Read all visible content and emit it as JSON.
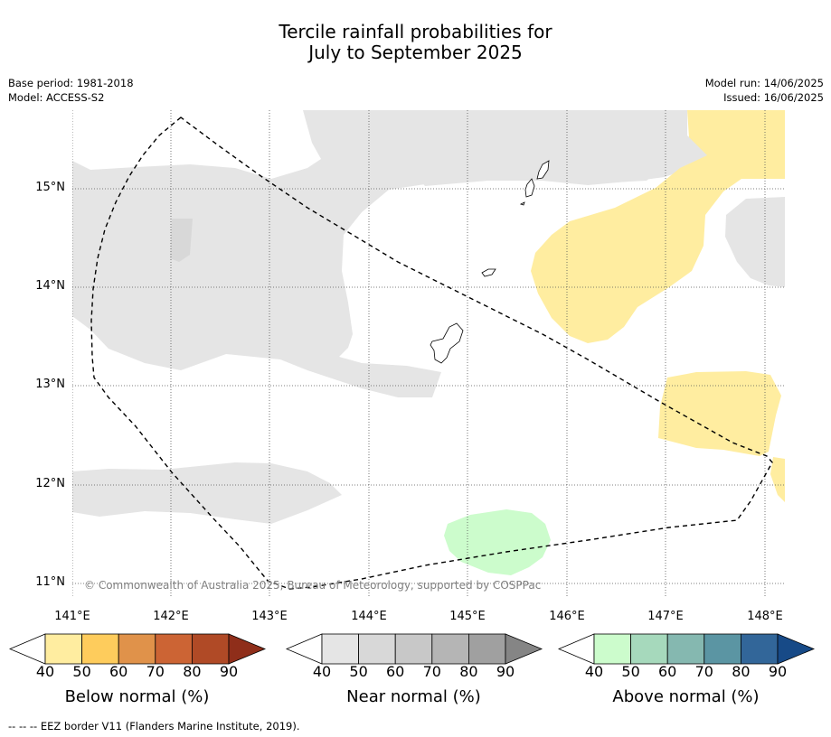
{
  "header": {
    "title_line1": "Tercile rainfall probabilities for",
    "title_line2": "July to September 2025",
    "base_period": "Base period: 1981-2018",
    "model": "Model: ACCESS-S2",
    "model_run": "Model run: 14/06/2025",
    "issued": "Issued: 16/06/2025"
  },
  "map": {
    "lat_labels": [
      "15°N",
      "14°N",
      "13°N",
      "12°N",
      "11°N"
    ],
    "lon_labels": [
      "141°E",
      "142°E",
      "143°E",
      "144°E",
      "145°E",
      "146°E",
      "147°E",
      "148°E"
    ],
    "copyright": "© Commonwealth of Australia 2025, Bureau of Meteorology, supported by COSPPac",
    "colors": {
      "near_normal_fill": "#e5e5e5",
      "near_normal_50": "#d8d8d8",
      "below_normal_fill": "#ffeda0",
      "above_normal_fill": "#ccfccc",
      "coastline": "#000000",
      "eez_border": "#000000"
    }
  },
  "colorbars": [
    {
      "label": "Below normal (%)",
      "ticks": [
        "40",
        "50",
        "60",
        "70",
        "80",
        "90"
      ],
      "colors": [
        "#ffffff",
        "#ffeda0",
        "#fecc5c",
        "#e0924a",
        "#cc6434",
        "#b04a26",
        "#8f2e1a"
      ]
    },
    {
      "label": "Near normal (%)",
      "ticks": [
        "40",
        "50",
        "60",
        "70",
        "80",
        "90"
      ],
      "colors": [
        "#ffffff",
        "#e5e5e5",
        "#d8d8d8",
        "#c8c8c8",
        "#b5b5b5",
        "#a0a0a0",
        "#858585"
      ]
    },
    {
      "label": "Above normal (%)",
      "ticks": [
        "40",
        "50",
        "60",
        "70",
        "80",
        "90"
      ],
      "colors": [
        "#ffffff",
        "#ccfccc",
        "#a6d9bc",
        "#85b8b0",
        "#5b95a3",
        "#326699",
        "#174a87"
      ]
    }
  ],
  "footnote": "--  --  -- EEZ border V11 (Flanders Marine Institute, 2019)."
}
